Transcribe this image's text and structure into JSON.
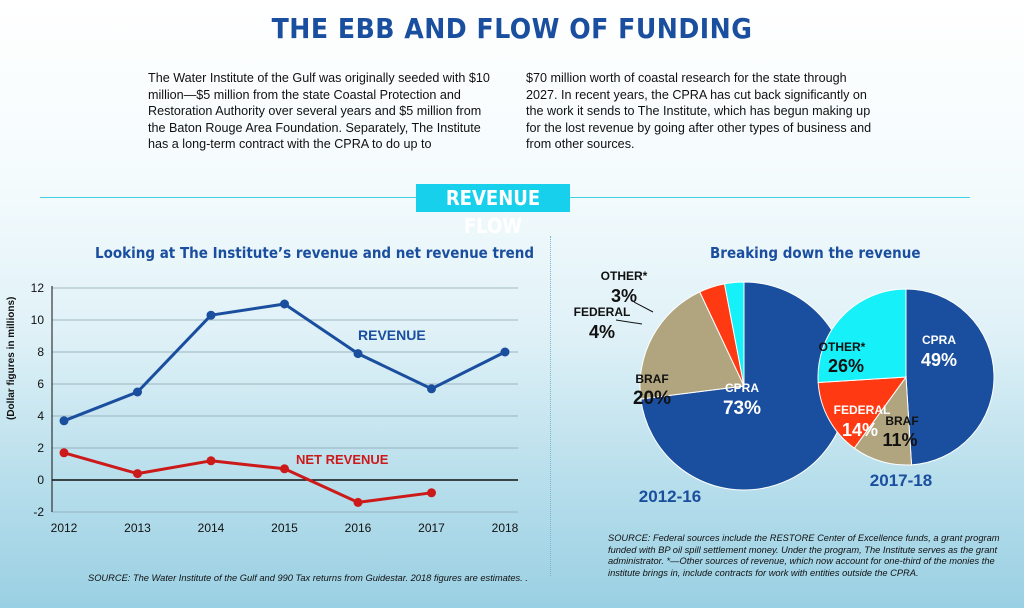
{
  "title": "THE EBB AND FLOW OF FUNDING",
  "intro": {
    "left": "The Water Institute of the Gulf was originally seeded with $10 million—$5 million from the state Coastal Protection and Restoration Authority over several years and $5 million from the Baton Rouge Area Foundation. Separately, The Institute has a long-term contract with the CPRA to do up to",
    "right": "$70 million worth of coastal research for the state through 2027. In recent years, the CPRA has cut back significantly on the work it sends to The Institute, which has begun making up for the lost revenue by going after other types of business and from other sources."
  },
  "section_banner": "REVENUE FLOW",
  "colors": {
    "navy": "#1a4e9e",
    "red": "#cc1a1a",
    "cyan": "#16d0ec",
    "orange_red": "#ff3a12",
    "khaki": "#b0a57f"
  },
  "chart_data": [
    {
      "type": "line",
      "title": "Looking at The Institute’s revenue and net revenue trend",
      "ylabel": "(Dollar figures in millions)",
      "xlabel": "",
      "x": [
        "2012",
        "2013",
        "2014",
        "2015",
        "2016",
        "2017",
        "2018"
      ],
      "ylim": [
        -2,
        12
      ],
      "yticks": [
        -2,
        0,
        2,
        4,
        6,
        8,
        10,
        12
      ],
      "grid": true,
      "series": [
        {
          "name": "REVENUE",
          "color": "#1a4e9e",
          "values": [
            3.7,
            5.5,
            10.3,
            11.0,
            7.9,
            5.7,
            8.0
          ]
        },
        {
          "name": "NET REVENUE",
          "color": "#cc1a1a",
          "values": [
            1.7,
            0.4,
            1.2,
            0.7,
            -1.4,
            -0.8,
            null
          ]
        }
      ],
      "source": "SOURCE: The Water Institute of the Gulf and 990 Tax returns from Guidestar. 2018 figures are estimates. ."
    },
    {
      "type": "pie",
      "title": "Breaking down the revenue",
      "subcharts": [
        {
          "label": "2012-16",
          "slices": [
            {
              "name": "CPRA",
              "value": 73,
              "label": "73%",
              "color": "#1a4e9e"
            },
            {
              "name": "BRAF",
              "value": 20,
              "label": "20%",
              "color": "#b0a57f"
            },
            {
              "name": "FEDERAL",
              "value": 4,
              "label": "4%",
              "color": "#ff3a12"
            },
            {
              "name": "OTHER*",
              "value": 3,
              "label": "3%",
              "color": "#16f0f8"
            }
          ]
        },
        {
          "label": "2017-18",
          "slices": [
            {
              "name": "CPRA",
              "value": 49,
              "label": "49%",
              "color": "#1a4e9e"
            },
            {
              "name": "BRAF",
              "value": 11,
              "label": "11%",
              "color": "#b0a57f"
            },
            {
              "name": "FEDERAL",
              "value": 14,
              "label": "14%",
              "color": "#ff3a12"
            },
            {
              "name": "OTHER*",
              "value": 26,
              "label": "26%",
              "color": "#16f0f8"
            }
          ]
        }
      ],
      "source": "SOURCE: Federal sources include the RESTORE Center of Excellence funds, a grant program funded with BP oil spill settlement money. Under the program, The Institute serves as the grant administrator. *—Other sources of revenue, which now account for one-third of the monies the institute brings in, include contracts for work with entities outside the CPRA."
    }
  ]
}
